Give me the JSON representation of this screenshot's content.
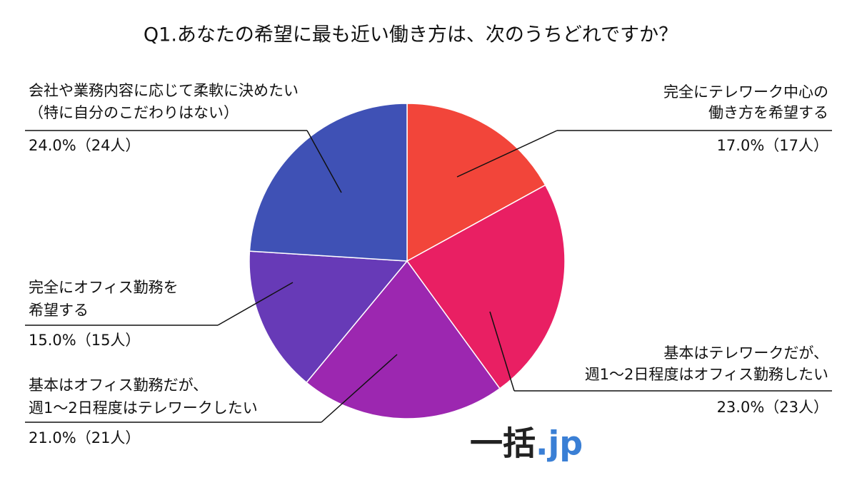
{
  "chart_data": {
    "type": "pie",
    "title": "Q1.あなたの希望に最も近い働き方は、次のうちどれですか？",
    "categories": [
      [
        "完全にテレワーク中心の",
        "働き方を希望する"
      ],
      [
        "基本はテレワークだが、",
        "週1～2日程度はオフィス勤務したい"
      ],
      [
        "基本はオフィス勤務だが、",
        "週1～2日程度はテレワークしたい"
      ],
      [
        "完全にオフィス勤務を",
        "希望する"
      ],
      [
        "会社や業務内容に応じて柔軟に決めたい",
        "（特に自分のこだわりはない）"
      ]
    ],
    "values": [
      17,
      23,
      21,
      15,
      24
    ],
    "value_labels": [
      "17.0%（17人）",
      "23.0%（23人）",
      "21.0%（21人）",
      "15.0%（15人）",
      "24.0%（24人）"
    ],
    "colors": [
      "#f2453a",
      "#e91f63",
      "#9c27b0",
      "#673ab7",
      "#3f51b5"
    ],
    "logo": [
      "一括",
      ".jp"
    ]
  }
}
